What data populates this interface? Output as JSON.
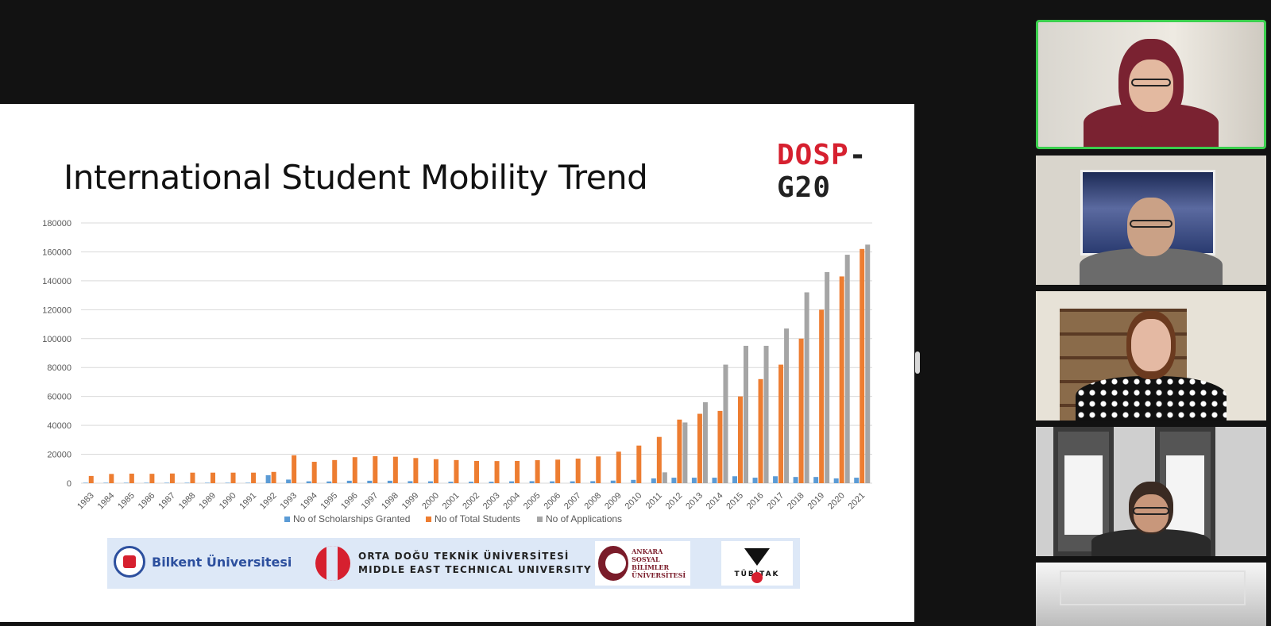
{
  "slide": {
    "title": "International Student Mobility Trend",
    "brand_part1": "DOSP",
    "brand_part2": "-G20"
  },
  "chart_data": {
    "type": "bar",
    "categories": [
      "1983",
      "1984",
      "1985",
      "1986",
      "1987",
      "1988",
      "1989",
      "1990",
      "1991",
      "1992",
      "1993",
      "1994",
      "1995",
      "1996",
      "1997",
      "1998",
      "1999",
      "2000",
      "2001",
      "2002",
      "2003",
      "2004",
      "2005",
      "2006",
      "2007",
      "2008",
      "2009",
      "2010",
      "2011",
      "2012",
      "2013",
      "2014",
      "2015",
      "2016",
      "2017",
      "2018",
      "2019",
      "2020",
      "2021"
    ],
    "series": [
      {
        "name": "No of Scholarships Granted",
        "color": "#5b9bd5",
        "values": [
          300,
          300,
          300,
          300,
          300,
          300,
          300,
          300,
          300,
          5500,
          2500,
          1300,
          1200,
          1700,
          1700,
          1700,
          1400,
          1300,
          1000,
          1000,
          1000,
          1300,
          1400,
          1300,
          1300,
          1400,
          1800,
          2300,
          3300,
          3800,
          3800,
          3800,
          4800,
          3800,
          4800,
          4300,
          4300,
          3300,
          3800
        ]
      },
      {
        "name": "No of Total Students",
        "color": "#ed7d31",
        "values": [
          5000,
          6400,
          6600,
          6500,
          6700,
          7300,
          7300,
          7300,
          7300,
          7800,
          19300,
          14800,
          16000,
          18000,
          18700,
          18300,
          17400,
          16600,
          16000,
          15400,
          15300,
          15400,
          15900,
          16300,
          17000,
          18500,
          21800,
          26000,
          32000,
          44000,
          48000,
          50000,
          60000,
          72000,
          82000,
          100000,
          120000,
          143000,
          162000
        ]
      },
      {
        "name": "No of Applications",
        "color": "#a5a5a5",
        "values": [
          0,
          0,
          0,
          0,
          0,
          0,
          0,
          0,
          0,
          0,
          0,
          0,
          0,
          0,
          0,
          0,
          0,
          0,
          0,
          0,
          0,
          0,
          0,
          0,
          0,
          0,
          0,
          0,
          7500,
          42000,
          56000,
          82000,
          95000,
          95000,
          107000,
          132000,
          146000,
          158000,
          165000
        ]
      }
    ],
    "yticks": [
      "0",
      "20000",
      "40000",
      "60000",
      "80000",
      "100000",
      "120000",
      "140000",
      "160000",
      "180000"
    ],
    "ylim": [
      0,
      180000
    ],
    "legend_position": "bottom",
    "grid": true
  },
  "logos": {
    "bilkent": "Bilkent Üniversitesi",
    "odtu_line1": "ORTA DOĞU TEKNİK ÜNİVERSİTESİ",
    "odtu_line2": "MIDDLE EAST TECHNICAL UNIVERSITY",
    "asbu_line1": "ANKARA",
    "asbu_line2": "SOSYAL BİLİMLER",
    "asbu_line3": "ÜNİVERSİTESİ",
    "tubitak": "TÜBİTAK"
  },
  "participants": [
    {
      "role": "active-speaker"
    },
    {
      "role": "participant"
    },
    {
      "role": "participant"
    },
    {
      "role": "participant"
    },
    {
      "role": "participant"
    }
  ]
}
